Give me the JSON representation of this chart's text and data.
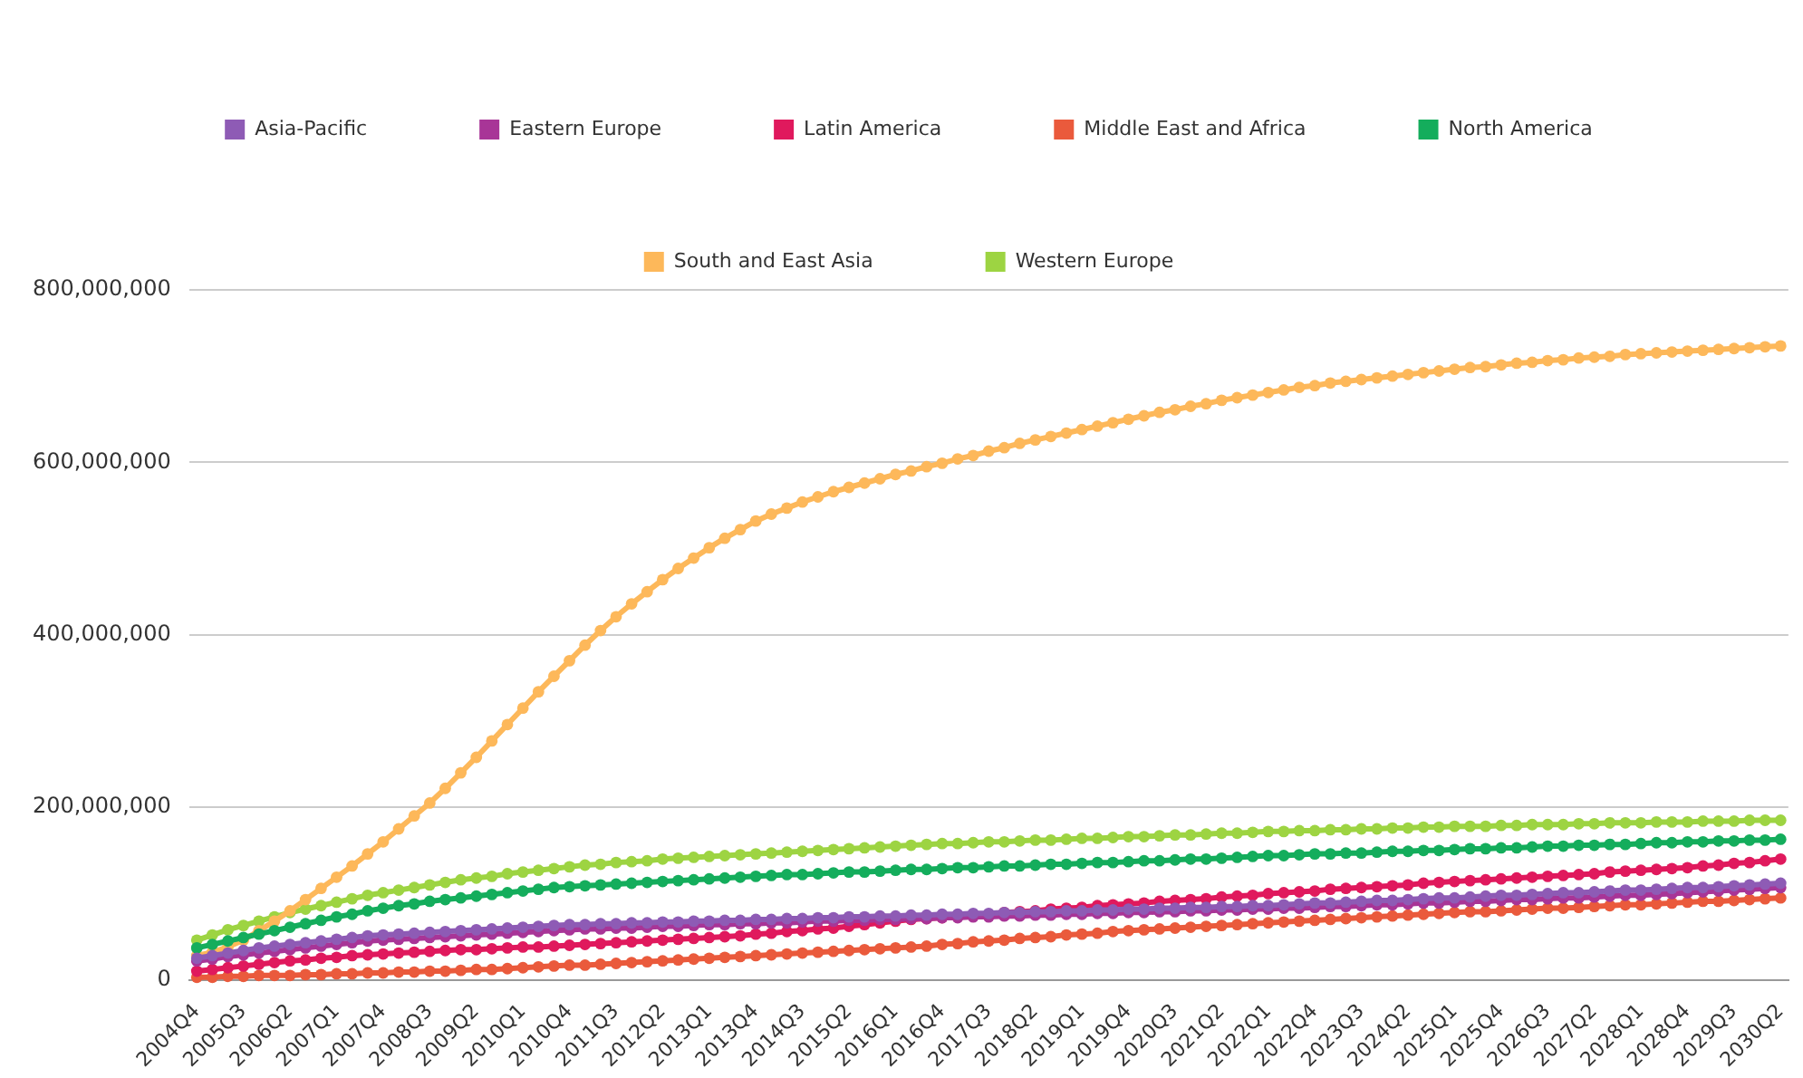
{
  "chart_data": {
    "type": "line",
    "marker": "circle",
    "legend": "top",
    "grid": "y",
    "categories": [
      "2004Q4",
      null,
      null,
      "2005Q3",
      null,
      null,
      "2006Q2",
      null,
      null,
      "2007Q1",
      null,
      null,
      "2007Q4",
      null,
      null,
      "2008Q3",
      null,
      null,
      "2009Q2",
      null,
      null,
      "2010Q1",
      null,
      null,
      "2010Q4",
      null,
      null,
      "2011Q3",
      null,
      null,
      "2012Q2",
      null,
      null,
      "2013Q1",
      null,
      null,
      "2013Q4",
      null,
      null,
      "2014Q3",
      null,
      null,
      "2015Q2",
      null,
      null,
      "2016Q1",
      null,
      null,
      "2016Q4",
      null,
      null,
      "2017Q3",
      null,
      null,
      "2018Q2",
      null,
      null,
      "2019Q1",
      null,
      null,
      "2019Q4",
      null,
      null,
      "2020Q3",
      null,
      null,
      "2021Q2",
      null,
      null,
      "2022Q1",
      null,
      null,
      "2022Q4",
      null,
      null,
      "2023Q3",
      null,
      null,
      "2024Q2",
      null,
      null,
      "2025Q1",
      null,
      null,
      "2025Q4",
      null,
      null,
      "2026Q3",
      null,
      null,
      "2027Q2",
      null,
      null,
      "2028Q1",
      null,
      null,
      "2028Q4",
      null,
      null,
      "2029Q3",
      null,
      null,
      "2030Q2"
    ],
    "ylim": [
      0,
      800000000
    ],
    "yticks": [
      0,
      {
        "value": 200000000,
        "label": "200,000,000"
      },
      {
        "value": 400000000,
        "label": "400,000,000"
      },
      {
        "value": 600000000,
        "label": "600,000,000"
      },
      {
        "value": 800000000,
        "label": "800,000,000"
      }
    ],
    "series": [
      {
        "name": "Asia-Pacific",
        "color": "#8e5bb5",
        "values": [
          25000000,
          28000000,
          31000000,
          34000000,
          37000000,
          39000000,
          41000000,
          43000000,
          45000000,
          47000000,
          49000000,
          51000000,
          52000000,
          53000000,
          54000000,
          55000000,
          56000000,
          57000000,
          58000000,
          59000000,
          60000000,
          61000000,
          62000000,
          63000000,
          64000000,
          64000000,
          65000000,
          65000000,
          66000000,
          66000000,
          67000000,
          67000000,
          68000000,
          68000000,
          69000000,
          69000000,
          70000000,
          70000000,
          71000000,
          71000000,
          72000000,
          72000000,
          73000000,
          73000000,
          74000000,
          74000000,
          75000000,
          75000000,
          76000000,
          76000000,
          77000000,
          77000000,
          78000000,
          78000000,
          79000000,
          79000000,
          80000000,
          80000000,
          81000000,
          81000000,
          82000000,
          82000000,
          83000000,
          83000000,
          84000000,
          84000000,
          85000000,
          85000000,
          86000000,
          86000000,
          87000000,
          88000000,
          89000000,
          89000000,
          90000000,
          91000000,
          92000000,
          92000000,
          93000000,
          94000000,
          95000000,
          95000000,
          96000000,
          97000000,
          98000000,
          98000000,
          99000000,
          100000000,
          101000000,
          101000000,
          102000000,
          103000000,
          104000000,
          104000000,
          105000000,
          106000000,
          107000000,
          107000000,
          108000000,
          109000000,
          110000000,
          111000000,
          112000000
        ]
      },
      {
        "name": "Eastern Europe",
        "color": "#a83597",
        "values": [
          22000000,
          24000000,
          27000000,
          29000000,
          31000000,
          33000000,
          35000000,
          37000000,
          39000000,
          41000000,
          43000000,
          45000000,
          46000000,
          47000000,
          48000000,
          49000000,
          50000000,
          51000000,
          52000000,
          53000000,
          54000000,
          55000000,
          56000000,
          57000000,
          58000000,
          59000000,
          59000000,
          60000000,
          60000000,
          61000000,
          62000000,
          62000000,
          63000000,
          64000000,
          64000000,
          65000000,
          65000000,
          66000000,
          66000000,
          67000000,
          68000000,
          68000000,
          69000000,
          69000000,
          70000000,
          70000000,
          71000000,
          71000000,
          72000000,
          72000000,
          73000000,
          73000000,
          74000000,
          74000000,
          75000000,
          75000000,
          76000000,
          76000000,
          77000000,
          77000000,
          78000000,
          78000000,
          79000000,
          79000000,
          80000000,
          80000000,
          81000000,
          81000000,
          82000000,
          82000000,
          83000000,
          83000000,
          84000000,
          85000000,
          85000000,
          86000000,
          87000000,
          87000000,
          88000000,
          89000000,
          89000000,
          90000000,
          91000000,
          91000000,
          92000000,
          93000000,
          93000000,
          94000000,
          95000000,
          95000000,
          96000000,
          97000000,
          98000000,
          98000000,
          99000000,
          100000000,
          101000000,
          102000000,
          103000000,
          104000000,
          105000000,
          106000000,
          107000000
        ]
      },
      {
        "name": "Latin America",
        "color": "#e0195d",
        "values": [
          10000000,
          12000000,
          14000000,
          16000000,
          18000000,
          20000000,
          22000000,
          23000000,
          25000000,
          26000000,
          28000000,
          29000000,
          30000000,
          31000000,
          32000000,
          33000000,
          34000000,
          35000000,
          35000000,
          36000000,
          37000000,
          38000000,
          38000000,
          39000000,
          40000000,
          41000000,
          42000000,
          43000000,
          44000000,
          45000000,
          46000000,
          47000000,
          48000000,
          49000000,
          50000000,
          51000000,
          53000000,
          54000000,
          56000000,
          57000000,
          59000000,
          60000000,
          62000000,
          64000000,
          66000000,
          68000000,
          70000000,
          71000000,
          72000000,
          74000000,
          75000000,
          76000000,
          78000000,
          79000000,
          80000000,
          82000000,
          83000000,
          84000000,
          86000000,
          87000000,
          88000000,
          89000000,
          91000000,
          92000000,
          93000000,
          94000000,
          96000000,
          97000000,
          98000000,
          100000000,
          101000000,
          102000000,
          103000000,
          105000000,
          106000000,
          107000000,
          108000000,
          109000000,
          110000000,
          112000000,
          113000000,
          114000000,
          115000000,
          116000000,
          117000000,
          118000000,
          119000000,
          120000000,
          121000000,
          122000000,
          123000000,
          125000000,
          126000000,
          127000000,
          128000000,
          129000000,
          130000000,
          132000000,
          133000000,
          135000000,
          136000000,
          138000000,
          140000000
        ]
      },
      {
        "name": "Middle East and Africa",
        "color": "#ea5a3c",
        "values": [
          3000000,
          3000000,
          4000000,
          4000000,
          5000000,
          5000000,
          5000000,
          6000000,
          6000000,
          7000000,
          7000000,
          8000000,
          8000000,
          9000000,
          9000000,
          10000000,
          10000000,
          11000000,
          12000000,
          12000000,
          13000000,
          14000000,
          15000000,
          16000000,
          17000000,
          17000000,
          18000000,
          19000000,
          20000000,
          21000000,
          22000000,
          23000000,
          24000000,
          25000000,
          26000000,
          27000000,
          28000000,
          29000000,
          30000000,
          31000000,
          32000000,
          33000000,
          34000000,
          35000000,
          36000000,
          37000000,
          38000000,
          39000000,
          41000000,
          42000000,
          44000000,
          45000000,
          46000000,
          48000000,
          49000000,
          50000000,
          52000000,
          53000000,
          54000000,
          56000000,
          57000000,
          58000000,
          59000000,
          60000000,
          61000000,
          62000000,
          63000000,
          64000000,
          65000000,
          66000000,
          67000000,
          68000000,
          69000000,
          70000000,
          71000000,
          72000000,
          73000000,
          74000000,
          75000000,
          76000000,
          77000000,
          78000000,
          79000000,
          79000000,
          80000000,
          81000000,
          82000000,
          83000000,
          83000000,
          84000000,
          85000000,
          86000000,
          87000000,
          87000000,
          88000000,
          89000000,
          90000000,
          91000000,
          91000000,
          92000000,
          93000000,
          94000000,
          95000000
        ]
      },
      {
        "name": "North America",
        "color": "#14ad5c",
        "values": [
          37000000,
          41000000,
          45000000,
          49000000,
          53000000,
          57000000,
          61000000,
          65000000,
          69000000,
          73000000,
          76000000,
          80000000,
          83000000,
          86000000,
          88000000,
          91000000,
          93000000,
          95000000,
          97000000,
          99000000,
          101000000,
          103000000,
          105000000,
          107000000,
          108000000,
          109000000,
          110000000,
          111000000,
          112000000,
          113000000,
          114000000,
          115000000,
          116000000,
          117000000,
          118000000,
          119000000,
          120000000,
          121000000,
          122000000,
          122000000,
          123000000,
          124000000,
          125000000,
          125000000,
          126000000,
          127000000,
          128000000,
          128000000,
          129000000,
          130000000,
          130000000,
          131000000,
          132000000,
          132000000,
          133000000,
          134000000,
          134000000,
          135000000,
          136000000,
          136000000,
          137000000,
          138000000,
          138000000,
          139000000,
          140000000,
          140000000,
          141000000,
          142000000,
          143000000,
          144000000,
          144000000,
          145000000,
          146000000,
          146000000,
          147000000,
          147000000,
          148000000,
          149000000,
          149000000,
          150000000,
          150000000,
          151000000,
          152000000,
          152000000,
          153000000,
          153000000,
          154000000,
          155000000,
          155000000,
          156000000,
          156000000,
          157000000,
          157000000,
          158000000,
          159000000,
          159000000,
          160000000,
          160000000,
          161000000,
          161000000,
          162000000,
          162000000,
          163000000
        ]
      },
      {
        "name": "South and East Asia",
        "color": "#fdb85a",
        "values": [
          28000000,
          32000000,
          38000000,
          46000000,
          57000000,
          68000000,
          80000000,
          93000000,
          106000000,
          119000000,
          132000000,
          146000000,
          160000000,
          175000000,
          190000000,
          205000000,
          222000000,
          240000000,
          258000000,
          277000000,
          296000000,
          315000000,
          334000000,
          352000000,
          370000000,
          388000000,
          405000000,
          421000000,
          436000000,
          450000000,
          464000000,
          477000000,
          489000000,
          501000000,
          512000000,
          522000000,
          532000000,
          540000000,
          547000000,
          554000000,
          560000000,
          566000000,
          571000000,
          576000000,
          581000000,
          586000000,
          590000000,
          595000000,
          599000000,
          604000000,
          608000000,
          613000000,
          617000000,
          622000000,
          626000000,
          630000000,
          634000000,
          638000000,
          642000000,
          646000000,
          650000000,
          654000000,
          658000000,
          661000000,
          665000000,
          668000000,
          672000000,
          675000000,
          678000000,
          681000000,
          684000000,
          687000000,
          689000000,
          692000000,
          694000000,
          696000000,
          698000000,
          700000000,
          702000000,
          704000000,
          706000000,
          708000000,
          710000000,
          711000000,
          713000000,
          715000000,
          716000000,
          718000000,
          719000000,
          721000000,
          722000000,
          723000000,
          725000000,
          726000000,
          727000000,
          728000000,
          729000000,
          730000000,
          731000000,
          732000000,
          733000000,
          734000000,
          735000000
        ]
      },
      {
        "name": "Western Europe",
        "color": "#9dd442",
        "values": [
          46000000,
          52000000,
          58000000,
          63000000,
          68000000,
          73000000,
          78000000,
          82000000,
          86000000,
          90000000,
          94000000,
          98000000,
          101000000,
          104000000,
          107000000,
          110000000,
          113000000,
          116000000,
          118000000,
          120000000,
          123000000,
          125000000,
          127000000,
          129000000,
          131000000,
          133000000,
          134000000,
          136000000,
          137000000,
          138000000,
          140000000,
          141000000,
          142000000,
          143000000,
          144000000,
          145000000,
          146000000,
          147000000,
          148000000,
          149000000,
          150000000,
          151000000,
          152000000,
          153000000,
          154000000,
          155000000,
          156000000,
          157000000,
          158000000,
          158000000,
          159000000,
          160000000,
          160000000,
          161000000,
          162000000,
          162000000,
          163000000,
          164000000,
          164000000,
          165000000,
          166000000,
          166000000,
          167000000,
          168000000,
          168000000,
          169000000,
          170000000,
          170000000,
          171000000,
          172000000,
          172000000,
          173000000,
          173000000,
          174000000,
          174000000,
          175000000,
          175000000,
          176000000,
          176000000,
          177000000,
          177000000,
          178000000,
          178000000,
          178000000,
          179000000,
          179000000,
          180000000,
          180000000,
          180000000,
          181000000,
          181000000,
          182000000,
          182000000,
          182000000,
          183000000,
          183000000,
          183000000,
          184000000,
          184000000,
          184000000,
          185000000,
          185000000,
          185000000
        ]
      }
    ]
  }
}
